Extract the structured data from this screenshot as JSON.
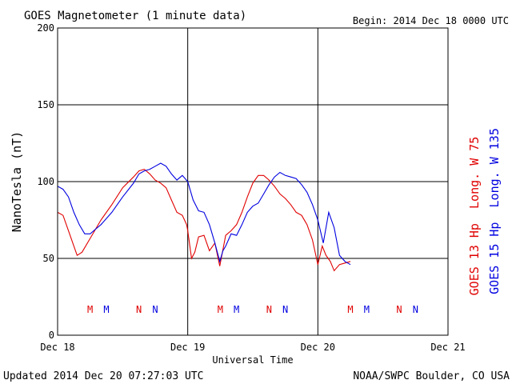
{
  "header": {
    "title": "GOES Magnetometer (1 minute data)",
    "begin": "Begin:  2014 Dec 18 0000 UTC"
  },
  "footer": {
    "updated": "Updated 2014 Dec 20 07:27:03 UTC",
    "credit": "NOAA/SWPC Boulder, CO USA"
  },
  "colors": {
    "goes13": "#e00000",
    "goes15": "#0000e0",
    "axis": "#000000"
  },
  "chart_data": {
    "type": "line",
    "xlabel": "Universal Time",
    "ylabel": "NanoTesla (nT)",
    "ylim": [
      0,
      200
    ],
    "yticks": [
      "0",
      "50",
      "100",
      "150",
      "200"
    ],
    "xlim_hours": [
      0,
      72
    ],
    "xticks": [
      {
        "hour": 0,
        "label": "Dec 18"
      },
      {
        "hour": 24,
        "label": "Dec 19"
      },
      {
        "hour": 48,
        "label": "Dec 20"
      },
      {
        "hour": 72,
        "label": "Dec 21"
      }
    ],
    "grid": true,
    "legend_placement": "right, vertical",
    "series": [
      {
        "name": "GOES 13 Hp  Long. W 75",
        "color": "#e00000",
        "x": [
          0,
          1,
          2,
          3,
          3.6,
          4.5,
          6,
          8,
          10,
          12,
          14,
          15,
          16,
          17,
          18,
          19,
          20,
          21,
          22,
          23,
          23.8,
          24,
          24.7,
          25.3,
          26,
          27,
          28,
          29,
          29.9,
          31,
          32,
          33,
          34,
          35,
          36,
          37,
          38,
          39,
          40,
          41,
          42,
          43,
          44,
          45,
          46,
          47,
          48,
          48.8,
          49.5,
          50.3,
          51,
          52,
          53,
          54
        ],
        "y": [
          80,
          78,
          68,
          58,
          52,
          54,
          63,
          75,
          85,
          96,
          103,
          107,
          108,
          105,
          101,
          99,
          96,
          88,
          80,
          78,
          72,
          68,
          50,
          54,
          64,
          65,
          55,
          60,
          45,
          65,
          68,
          72,
          80,
          90,
          99,
          104,
          104,
          101,
          97,
          92,
          89,
          85,
          80,
          78,
          72,
          62,
          46,
          58,
          52,
          48,
          42,
          46,
          47,
          48
        ]
      },
      {
        "name": "GOES 15 Hp  Long. W 135",
        "color": "#0000e0",
        "x": [
          0,
          1,
          2,
          3,
          4,
          5,
          6,
          7,
          8,
          10,
          12,
          14,
          15,
          16,
          17,
          18,
          19,
          20,
          21,
          22,
          23,
          24,
          25,
          26,
          27,
          28,
          29,
          29.9,
          30.5,
          31,
          32,
          33,
          34,
          35,
          36,
          37,
          38,
          39,
          40,
          41,
          42,
          43,
          44,
          45,
          46,
          47,
          48,
          49,
          50,
          51,
          52,
          53,
          54
        ],
        "y": [
          97,
          95,
          90,
          80,
          72,
          66,
          66,
          69,
          72,
          80,
          90,
          99,
          105,
          107,
          108,
          110,
          112,
          110,
          105,
          101,
          104,
          100,
          88,
          81,
          80,
          72,
          60,
          48,
          55,
          58,
          66,
          65,
          72,
          80,
          84,
          86,
          92,
          98,
          103,
          106,
          104,
          103,
          102,
          98,
          93,
          85,
          75,
          60,
          80,
          70,
          52,
          48,
          46
        ]
      }
    ],
    "markers": [
      {
        "label": "M",
        "hour": 6,
        "series": 0
      },
      {
        "label": "M",
        "hour": 9,
        "series": 1
      },
      {
        "label": "N",
        "hour": 15,
        "series": 0
      },
      {
        "label": "N",
        "hour": 18,
        "series": 1
      },
      {
        "label": "M",
        "hour": 30,
        "series": 0
      },
      {
        "label": "M",
        "hour": 33,
        "series": 1
      },
      {
        "label": "N",
        "hour": 39,
        "series": 0
      },
      {
        "label": "N",
        "hour": 42,
        "series": 1
      },
      {
        "label": "M",
        "hour": 54,
        "series": 0
      },
      {
        "label": "M",
        "hour": 57,
        "series": 1
      },
      {
        "label": "N",
        "hour": 63,
        "series": 0
      },
      {
        "label": "N",
        "hour": 66,
        "series": 1
      }
    ]
  }
}
